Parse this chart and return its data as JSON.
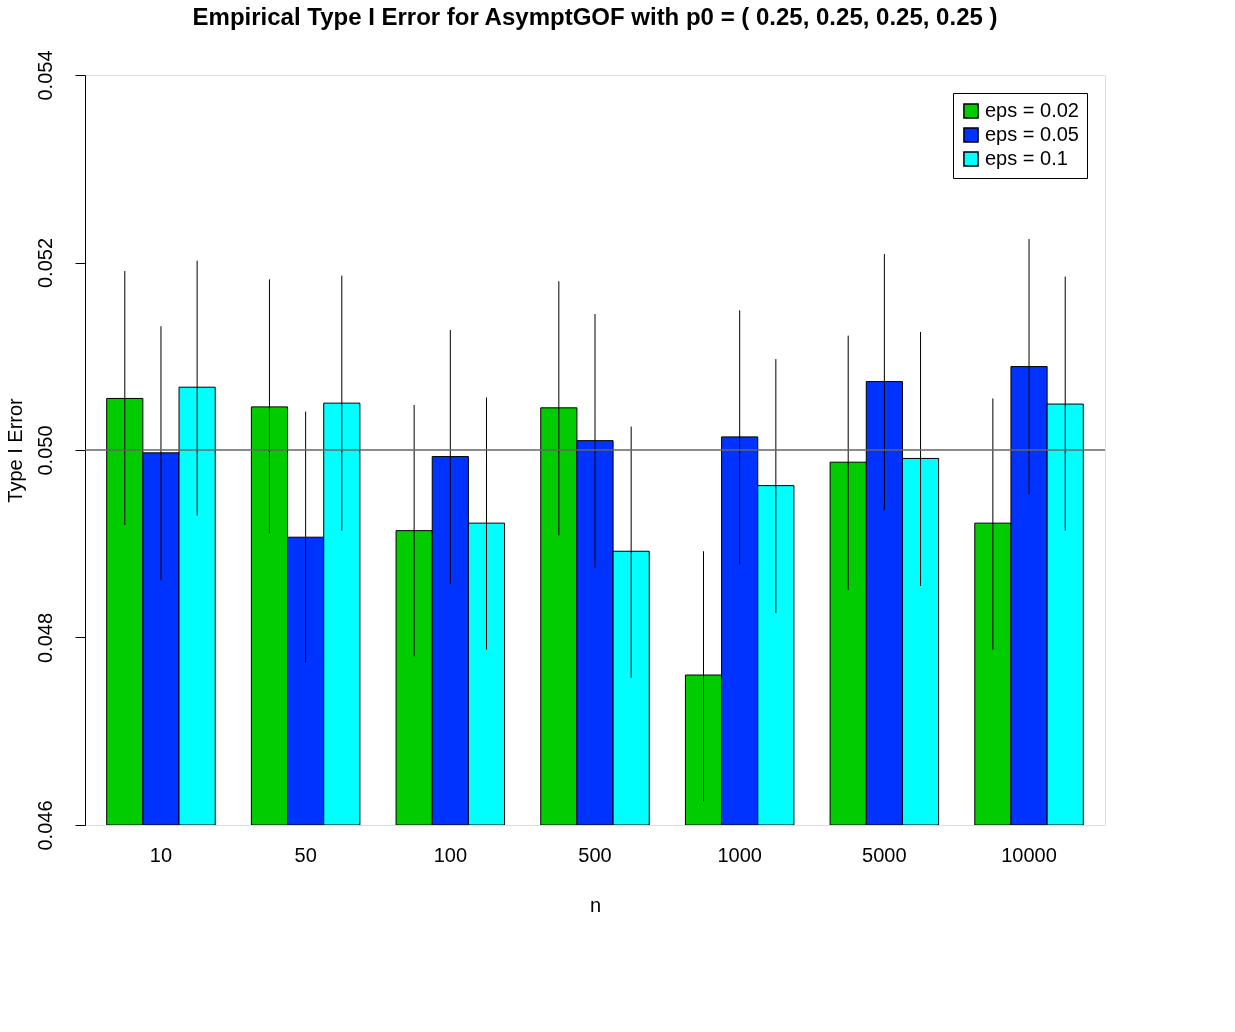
{
  "chart_data": {
    "type": "bar",
    "title": "Empirical Type I Error for AsymptGOF with p0 = ( 0.25, 0.25, 0.25, 0.25 )",
    "xlabel": "n",
    "ylabel": "Type I Error",
    "categories": [
      "10",
      "50",
      "100",
      "500",
      "1000",
      "5000",
      "10000"
    ],
    "series": [
      {
        "name": "eps = 0.02",
        "color": "#00cc00",
        "values": [
          0.05055,
          0.05046,
          0.04914,
          0.05045,
          0.0476,
          0.04987,
          0.04922
        ],
        "errors": [
          [
            0.0492,
            0.05191
          ],
          [
            0.04911,
            0.05182
          ],
          [
            0.0478,
            0.05048
          ],
          [
            0.04909,
            0.0518
          ],
          [
            0.04625,
            0.04892
          ],
          [
            0.04851,
            0.05122
          ],
          [
            0.04787,
            0.05055
          ]
        ]
      },
      {
        "name": "eps = 0.05",
        "color": "#0033ff",
        "values": [
          0.04997,
          0.04907,
          0.04993,
          0.0501,
          0.05014,
          0.05073,
          0.05089
        ],
        "errors": [
          [
            0.04861,
            0.05132
          ],
          [
            0.04773,
            0.05041
          ],
          [
            0.04857,
            0.05128
          ],
          [
            0.04874,
            0.05145
          ],
          [
            0.04878,
            0.05149
          ],
          [
            0.04936,
            0.05209
          ],
          [
            0.04953,
            0.05225
          ]
        ]
      },
      {
        "name": "eps = 0.1",
        "color": "#00ffff",
        "values": [
          0.05067,
          0.0505,
          0.04922,
          0.04892,
          0.04962,
          0.04991,
          0.05049
        ],
        "errors": [
          [
            0.0493,
            0.05202
          ],
          [
            0.04914,
            0.05186
          ],
          [
            0.04787,
            0.05056
          ],
          [
            0.04757,
            0.05025
          ],
          [
            0.04826,
            0.05097
          ],
          [
            0.04855,
            0.05126
          ],
          [
            0.04914,
            0.05185
          ]
        ]
      }
    ],
    "ylim": [
      0.046,
      0.054
    ],
    "yticks": [
      0.046,
      0.048,
      {
        "value": 0.05,
        "label": "0.050"
      },
      0.052,
      0.054
    ],
    "ref_lines": [
      {
        "axis": "y",
        "value": 0.05,
        "color": "#666666"
      }
    ],
    "legend": "top right",
    "grid": false
  }
}
